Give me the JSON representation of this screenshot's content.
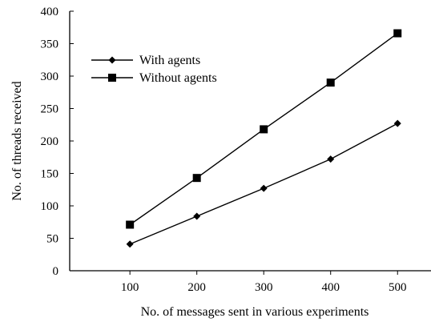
{
  "chart_data": {
    "type": "line",
    "title": "",
    "xlabel": "No. of messages sent in various experiments",
    "ylabel": "No. of threads received",
    "x": [
      100,
      200,
      300,
      400,
      500
    ],
    "xlim": [
      10,
      550
    ],
    "ylim": [
      0,
      400
    ],
    "xticks": [
      100,
      200,
      300,
      400,
      500
    ],
    "yticks": [
      0,
      50,
      100,
      150,
      200,
      250,
      300,
      350,
      400
    ],
    "grid": false,
    "legend_position": "top-left",
    "series": [
      {
        "name": "With agents",
        "marker": "diamond",
        "color": "#000000",
        "values": [
          41,
          84,
          127,
          172,
          227
        ]
      },
      {
        "name": "Without agents",
        "marker": "square",
        "color": "#000000",
        "values": [
          71,
          143,
          218,
          290,
          366
        ]
      }
    ]
  }
}
